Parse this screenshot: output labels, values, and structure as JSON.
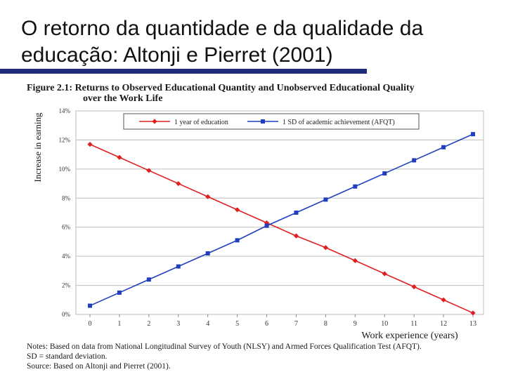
{
  "slide": {
    "title_line1": "O retorno da quantidade e da qualidade da",
    "title_line2": "educação: Altonji e Pierret (2001)",
    "accent": "#1f2a7a"
  },
  "figure": {
    "title_line1": "Figure 2.1: Returns to Observed Educational Quantity and Unobserved Educational Quality",
    "title_line2": "over the Work Life"
  },
  "notes": {
    "line1": "Notes: Based on data from National Longitudinal Survey of Youth (NLSY) and Armed Forces Qualification Test (AFQT).",
    "line2": "SD = standard deviation.",
    "line3": "Source: Based on Altonji and Pierret (2001)."
  },
  "chart_data": {
    "type": "line",
    "xlabel": "Work experience (years)",
    "ylabel": "Increase in earning",
    "x": [
      0,
      1,
      2,
      3,
      4,
      5,
      6,
      7,
      8,
      9,
      10,
      11,
      12,
      13
    ],
    "xlim": [
      0,
      13
    ],
    "ylim": [
      0,
      14
    ],
    "y_ticks": [
      0,
      2,
      4,
      6,
      8,
      10,
      12,
      14
    ],
    "y_tick_labels": [
      "0%",
      "2%",
      "4%",
      "6%",
      "8%",
      "10%",
      "12%",
      "14%"
    ],
    "grid": "horizontal",
    "legend_position": "top-center",
    "series": [
      {
        "name": "1 year of education",
        "color": "#e02020",
        "marker": "diamond",
        "values": [
          11.7,
          10.8,
          9.9,
          9.0,
          8.1,
          7.2,
          6.3,
          5.4,
          4.6,
          3.7,
          2.8,
          1.9,
          1.0,
          0.1
        ]
      },
      {
        "name": "1 SD of academic achievement (AFQT)",
        "color": "#1f3fbf",
        "marker": "square",
        "values": [
          0.6,
          1.5,
          2.4,
          3.3,
          4.2,
          5.1,
          6.1,
          7.0,
          7.9,
          8.8,
          9.7,
          10.6,
          11.5,
          12.4
        ]
      }
    ]
  }
}
